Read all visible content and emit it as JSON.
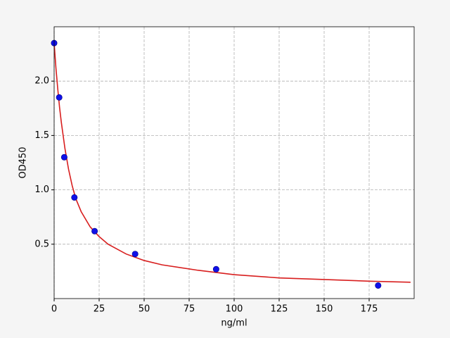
{
  "chart_data": {
    "type": "scatter",
    "xlabel": "ng/ml",
    "ylabel": "OD450",
    "xlim": [
      0,
      200
    ],
    "ylim": [
      0,
      2.5
    ],
    "xticks": [
      0,
      25,
      50,
      75,
      100,
      125,
      150,
      175
    ],
    "yticks": [
      0.5,
      {
        "value": 1.0,
        "label": "1.0"
      },
      1.5,
      {
        "value": 2.0,
        "label": "2.0"
      }
    ],
    "grid": true,
    "points": {
      "color": "#1010e8",
      "x": [
        0,
        2.8125,
        5.625,
        11.25,
        22.5,
        45,
        90,
        180
      ],
      "values": [
        2.35,
        1.85,
        1.3,
        0.93,
        0.62,
        0.41,
        0.27,
        0.12
      ]
    },
    "curve": {
      "color": "#d81e1e",
      "x": [
        0,
        1,
        2,
        3,
        4,
        6,
        8,
        10,
        12,
        15,
        20,
        25,
        30,
        40,
        50,
        60,
        80,
        100,
        125,
        150,
        175,
        198
      ],
      "values": [
        2.35,
        2.12,
        1.93,
        1.76,
        1.62,
        1.38,
        1.19,
        1.04,
        0.92,
        0.8,
        0.66,
        0.57,
        0.5,
        0.41,
        0.35,
        0.31,
        0.26,
        0.22,
        0.19,
        0.175,
        0.16,
        0.15
      ]
    }
  }
}
